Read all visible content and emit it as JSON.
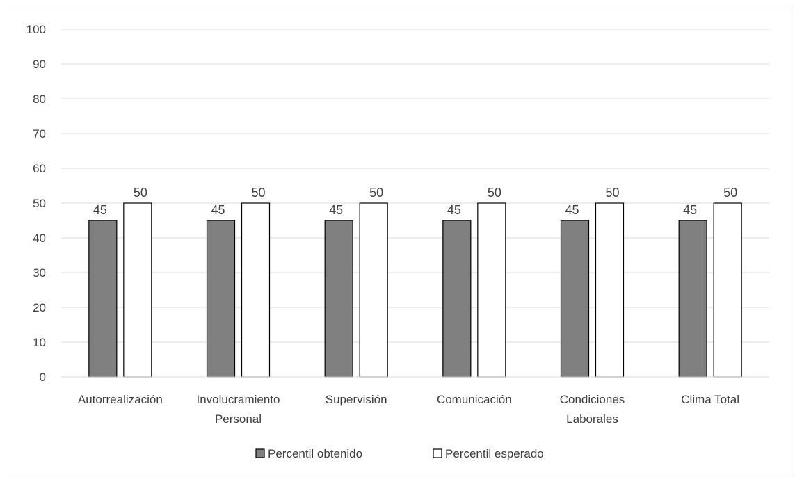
{
  "chart_data": {
    "type": "bar",
    "categories": [
      [
        "Autorrealización"
      ],
      [
        "Involucramiento",
        "Personal"
      ],
      [
        "Supervisión"
      ],
      [
        "Comunicación"
      ],
      [
        "Condiciones",
        "Laborales"
      ],
      [
        "Clima Total"
      ]
    ],
    "series": [
      {
        "name": "Percentil obtenido",
        "values": [
          45,
          45,
          45,
          45,
          45,
          45
        ],
        "color": "#808080"
      },
      {
        "name": "Percentil esperado",
        "values": [
          50,
          50,
          50,
          50,
          50,
          50
        ],
        "color": "#ffffff"
      }
    ],
    "ylim": [
      0,
      100
    ],
    "yticks": [
      0,
      10,
      20,
      30,
      40,
      50,
      60,
      70,
      80,
      90,
      100
    ],
    "grid": true,
    "legend_position": "bottom",
    "data_labels": true
  },
  "colors": {
    "gridline": "#d9d9d9",
    "bar_border": "#000000",
    "text": "#404040"
  }
}
